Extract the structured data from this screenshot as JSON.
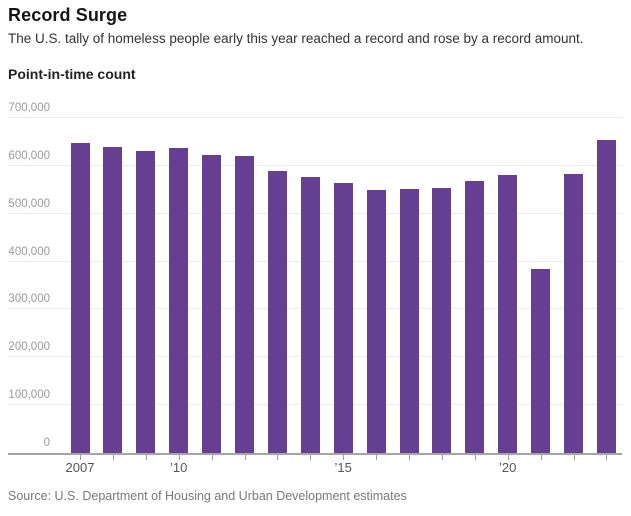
{
  "header": {
    "title": "Record Surge",
    "subtitle": "The U.S. tally of homeless people early this year reached a record and rose by a record amount."
  },
  "chart_label": "Point-in-time count",
  "source": "Source: U.S. Department of Housing and Urban Development estimates",
  "colors": {
    "bar": "#663f93",
    "gridline": "#ededed",
    "axis_line": "#a5a5a5",
    "title_text": "#151515",
    "y_label_text": "#9b9b9b",
    "x_label_text": "#555555",
    "source_text": "#787878"
  },
  "chart_data": {
    "type": "bar",
    "title": "Record Surge",
    "subtitle": "The U.S. tally of homeless people early this year reached a record and rose by a record amount.",
    "ylabel": "Point-in-time count",
    "xlabel": "",
    "categories": [
      2007,
      2008,
      2009,
      2010,
      2011,
      2012,
      2013,
      2014,
      2015,
      2016,
      2017,
      2018,
      2019,
      2020,
      2021,
      2022,
      2023
    ],
    "values": [
      647258,
      639784,
      630227,
      637077,
      623788,
      621553,
      590364,
      576450,
      564708,
      549928,
      550996,
      552830,
      567715,
      580466,
      385000,
      582462,
      653104
    ],
    "series_name": "Point-in-time count of homeless people",
    "ylim": [
      0,
      700000
    ],
    "ytick_interval": 100000,
    "ytick_labels": [
      "0",
      "100,000",
      "200,000",
      "300,000",
      "400,000",
      "500,000",
      "600,000",
      "700,000"
    ],
    "xtick_labels": [
      "2007",
      "",
      "",
      "’10",
      "",
      "",
      "",
      "",
      "’15",
      "",
      "",
      "",
      "",
      "’20",
      "",
      "",
      ""
    ],
    "grid": true,
    "legend": false,
    "bar_color": "#663f93"
  }
}
